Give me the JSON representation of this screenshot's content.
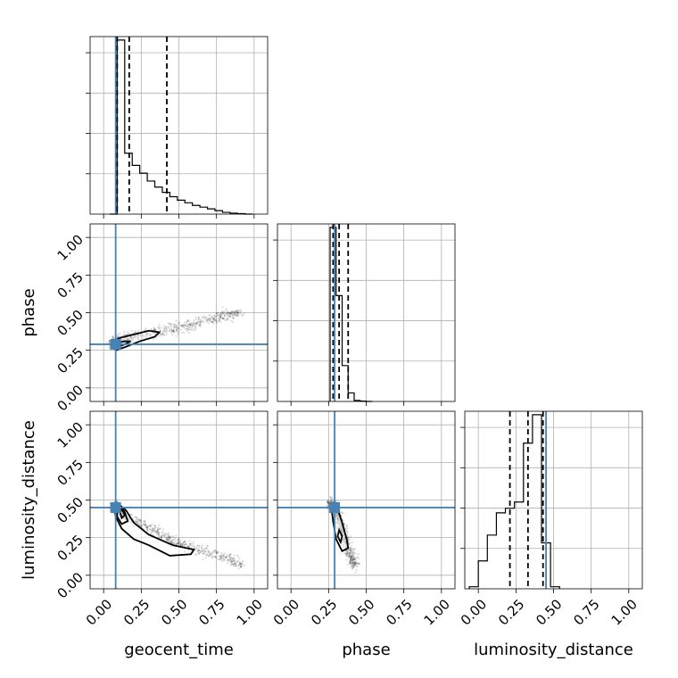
{
  "chart_data": {
    "type": "corner",
    "parameters": [
      "geocent_time",
      "phase",
      "luminosity_distance"
    ],
    "axis_labels": {
      "x": [
        "geocent_time",
        "phase",
        "luminosity_distance"
      ],
      "y": [
        "phase",
        "luminosity_distance"
      ]
    },
    "tick_values": [
      0.0,
      0.25,
      0.5,
      0.75,
      1.0
    ],
    "tick_labels": [
      "0.00",
      "0.25",
      "0.50",
      "0.75",
      "1.00"
    ],
    "xlim": [
      -0.09,
      1.09
    ],
    "ylim": [
      -0.09,
      1.09
    ],
    "grid": true,
    "truth_color": "#4682b4",
    "injected_values": {
      "geocent_time": 0.08,
      "phase": 0.29,
      "luminosity_distance": 0.45
    },
    "quantiles": {
      "geocent_time": [
        0.09,
        0.17,
        0.42
      ],
      "phase": [
        0.28,
        0.32,
        0.38
      ],
      "luminosity_distance": [
        0.21,
        0.33,
        0.43
      ]
    },
    "histograms": {
      "geocent_time": {
        "bins": [
          0.04,
          0.09,
          0.14,
          0.19,
          0.24,
          0.29,
          0.34,
          0.39,
          0.44,
          0.49,
          0.54,
          0.59,
          0.64,
          0.69,
          0.74,
          0.79,
          0.84,
          0.89,
          0.94,
          0.99
        ],
        "counts": [
          0,
          4.0,
          1.4,
          1.12,
          0.94,
          0.76,
          0.62,
          0.5,
          0.4,
          0.32,
          0.26,
          0.2,
          0.16,
          0.12,
          0.08,
          0.04,
          0.02,
          0.01,
          0
        ]
      },
      "phase": {
        "bins": [
          0.26,
          0.3,
          0.34,
          0.38,
          0.42,
          0.46,
          0.5,
          0.54
        ],
        "counts": [
          5.1,
          3.1,
          1.05,
          0.25,
          0.03,
          0.01,
          0
        ]
      },
      "luminosity_distance": {
        "bins": [
          -0.06,
          0.0,
          0.06,
          0.12,
          0.18,
          0.24,
          0.3,
          0.36,
          0.42,
          0.48,
          0.54
        ],
        "counts": [
          0.04,
          0.54,
          1.04,
          1.47,
          1.56,
          1.68,
          2.82,
          3.37,
          0.89,
          0.04
        ]
      }
    },
    "panels_2d": [
      {
        "x": "geocent_time",
        "y": "phase",
        "scatter_trend": [
          [
            0.06,
            0.3
          ],
          [
            0.2,
            0.34
          ],
          [
            0.4,
            0.38
          ],
          [
            0.6,
            0.42
          ],
          [
            0.8,
            0.48
          ],
          [
            0.92,
            0.5
          ]
        ],
        "contours": [
          [
            [
              0.08,
              0.25
            ],
            [
              0.14,
              0.27
            ],
            [
              0.24,
              0.31
            ],
            [
              0.34,
              0.34
            ],
            [
              0.37,
              0.37
            ],
            [
              0.3,
              0.38
            ],
            [
              0.18,
              0.35
            ],
            [
              0.1,
              0.33
            ],
            [
              0.06,
              0.3
            ],
            [
              0.08,
              0.25
            ]
          ],
          [
            [
              0.09,
              0.27
            ],
            [
              0.14,
              0.29
            ],
            [
              0.18,
              0.31
            ],
            [
              0.14,
              0.31
            ],
            [
              0.09,
              0.3
            ],
            [
              0.09,
              0.27
            ]
          ]
        ]
      },
      {
        "x": "geocent_time",
        "y": "luminosity_distance",
        "scatter_trend": [
          [
            0.06,
            0.45
          ],
          [
            0.2,
            0.36
          ],
          [
            0.4,
            0.26
          ],
          [
            0.6,
            0.18
          ],
          [
            0.8,
            0.12
          ],
          [
            0.93,
            0.07
          ]
        ],
        "contours": [
          [
            [
              0.08,
              0.49
            ],
            [
              0.15,
              0.43
            ],
            [
              0.2,
              0.35
            ],
            [
              0.3,
              0.27
            ],
            [
              0.46,
              0.2
            ],
            [
              0.6,
              0.17
            ],
            [
              0.58,
              0.14
            ],
            [
              0.44,
              0.13
            ],
            [
              0.3,
              0.2
            ],
            [
              0.2,
              0.24
            ],
            [
              0.12,
              0.31
            ],
            [
              0.08,
              0.39
            ],
            [
              0.07,
              0.45
            ],
            [
              0.08,
              0.49
            ]
          ],
          [
            [
              0.1,
              0.47
            ],
            [
              0.14,
              0.42
            ],
            [
              0.16,
              0.36
            ],
            [
              0.12,
              0.34
            ],
            [
              0.09,
              0.39
            ],
            [
              0.09,
              0.44
            ],
            [
              0.1,
              0.47
            ]
          ],
          [
            [
              0.12,
              0.44
            ],
            [
              0.14,
              0.4
            ],
            [
              0.12,
              0.38
            ],
            [
              0.11,
              0.42
            ],
            [
              0.12,
              0.44
            ]
          ]
        ]
      },
      {
        "x": "phase",
        "y": "luminosity_distance",
        "scatter_trend": [
          [
            0.27,
            0.48
          ],
          [
            0.31,
            0.4
          ],
          [
            0.34,
            0.3
          ],
          [
            0.37,
            0.2
          ],
          [
            0.4,
            0.12
          ],
          [
            0.43,
            0.06
          ]
        ],
        "contours": [
          [
            [
              0.28,
              0.48
            ],
            [
              0.31,
              0.44
            ],
            [
              0.34,
              0.35
            ],
            [
              0.37,
              0.24
            ],
            [
              0.38,
              0.18
            ],
            [
              0.34,
              0.16
            ],
            [
              0.3,
              0.24
            ],
            [
              0.28,
              0.36
            ],
            [
              0.27,
              0.44
            ],
            [
              0.28,
              0.48
            ]
          ],
          [
            [
              0.32,
              0.3
            ],
            [
              0.34,
              0.26
            ],
            [
              0.33,
              0.22
            ],
            [
              0.31,
              0.26
            ],
            [
              0.32,
              0.3
            ]
          ]
        ]
      }
    ]
  }
}
